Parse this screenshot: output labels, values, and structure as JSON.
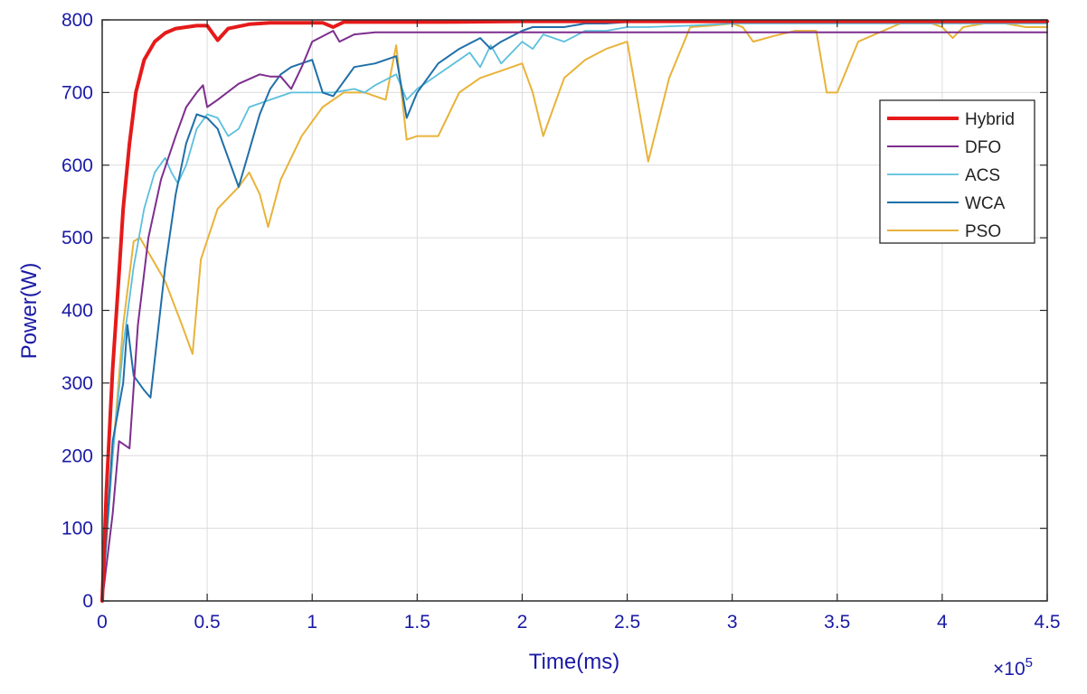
{
  "chart_data": {
    "type": "line",
    "xlabel": "Time(ms)",
    "ylabel": "Power(W)",
    "x_multiplier_label": "×10",
    "x_multiplier_exponent": "5",
    "xlim": [
      0,
      4.5
    ],
    "ylim": [
      0,
      800
    ],
    "xticks": [
      "0",
      "0.5",
      "1",
      "1.5",
      "2",
      "2.5",
      "3",
      "3.5",
      "4",
      "4.5"
    ],
    "yticks": [
      "0",
      "100",
      "200",
      "300",
      "400",
      "500",
      "600",
      "700",
      "800"
    ],
    "grid": true,
    "legend_position": "top-right",
    "series": [
      {
        "name": "Hybrid",
        "color": "#e51a1a",
        "width": 4,
        "x": [
          0,
          0.02,
          0.05,
          0.08,
          0.1,
          0.13,
          0.16,
          0.2,
          0.25,
          0.3,
          0.35,
          0.4,
          0.45,
          0.5,
          0.55,
          0.6,
          0.7,
          0.8,
          0.9,
          1.0,
          1.05,
          1.1,
          1.15,
          1.2,
          1.4,
          1.6,
          2.0,
          2.5,
          3.0,
          4.5
        ],
        "y": [
          0,
          150,
          320,
          450,
          540,
          630,
          700,
          745,
          770,
          782,
          788,
          790,
          792,
          792,
          772,
          788,
          794,
          796,
          796,
          796,
          796,
          790,
          797,
          797,
          797,
          797,
          798,
          798,
          798,
          798
        ]
      },
      {
        "name": "DFO",
        "color": "#7d2e8e",
        "width": 2,
        "x": [
          0,
          0.05,
          0.08,
          0.13,
          0.17,
          0.22,
          0.28,
          0.35,
          0.4,
          0.45,
          0.48,
          0.5,
          0.55,
          0.65,
          0.75,
          0.8,
          0.85,
          0.9,
          0.95,
          1.0,
          1.1,
          1.13,
          1.2,
          1.3,
          1.5,
          2.0,
          2.5,
          4.5
        ],
        "y": [
          0,
          120,
          220,
          210,
          380,
          500,
          580,
          640,
          680,
          700,
          710,
          680,
          690,
          712,
          725,
          722,
          722,
          705,
          735,
          770,
          785,
          770,
          780,
          783,
          783,
          783,
          783,
          783
        ]
      },
      {
        "name": "ACS",
        "color": "#5bbfdd",
        "width": 1.8,
        "x": [
          0,
          0.05,
          0.1,
          0.15,
          0.2,
          0.25,
          0.3,
          0.33,
          0.36,
          0.4,
          0.45,
          0.5,
          0.55,
          0.6,
          0.65,
          0.7,
          0.8,
          0.9,
          1.0,
          1.1,
          1.2,
          1.25,
          1.3,
          1.4,
          1.45,
          1.5,
          1.6,
          1.7,
          1.75,
          1.8,
          1.85,
          1.9,
          1.95,
          2.0,
          2.05,
          2.1,
          2.2,
          2.3,
          2.4,
          2.5,
          2.6,
          2.8,
          3.0,
          3.5,
          4.5
        ],
        "y": [
          0,
          200,
          350,
          460,
          540,
          590,
          610,
          590,
          575,
          600,
          650,
          670,
          665,
          640,
          650,
          680,
          690,
          700,
          700,
          700,
          705,
          700,
          710,
          725,
          690,
          705,
          725,
          745,
          755,
          735,
          765,
          740,
          755,
          770,
          760,
          780,
          770,
          785,
          785,
          790,
          790,
          792,
          795,
          795,
          795
        ]
      },
      {
        "name": "WCA",
        "color": "#1f6fa8",
        "width": 2,
        "x": [
          0,
          0.05,
          0.1,
          0.12,
          0.15,
          0.2,
          0.23,
          0.3,
          0.35,
          0.4,
          0.45,
          0.5,
          0.55,
          0.6,
          0.65,
          0.7,
          0.75,
          0.8,
          0.85,
          0.9,
          0.95,
          1.0,
          1.05,
          1.1,
          1.2,
          1.3,
          1.4,
          1.45,
          1.5,
          1.6,
          1.7,
          1.8,
          1.85,
          1.9,
          2.0,
          2.05,
          2.1,
          2.2,
          2.3,
          2.4,
          2.5,
          2.6,
          3.0,
          4.5
        ],
        "y": [
          0,
          220,
          300,
          380,
          310,
          290,
          280,
          460,
          560,
          630,
          670,
          665,
          650,
          610,
          570,
          620,
          670,
          705,
          725,
          735,
          740,
          745,
          700,
          695,
          735,
          740,
          750,
          665,
          700,
          740,
          760,
          775,
          760,
          770,
          785,
          790,
          790,
          790,
          795,
          795,
          797,
          797,
          798,
          798
        ]
      },
      {
        "name": "PSO",
        "color": "#e8b33a",
        "width": 2,
        "x": [
          0,
          0.05,
          0.1,
          0.15,
          0.18,
          0.22,
          0.3,
          0.38,
          0.43,
          0.47,
          0.55,
          0.6,
          0.65,
          0.7,
          0.75,
          0.79,
          0.85,
          0.95,
          1.05,
          1.15,
          1.25,
          1.35,
          1.4,
          1.45,
          1.5,
          1.6,
          1.7,
          1.8,
          1.9,
          2.0,
          2.05,
          2.1,
          2.2,
          2.3,
          2.4,
          2.5,
          2.6,
          2.7,
          2.8,
          2.9,
          3.0,
          3.05,
          3.1,
          3.2,
          3.3,
          3.4,
          3.45,
          3.5,
          3.6,
          3.8,
          3.95,
          4.0,
          4.05,
          4.1,
          4.2,
          4.3,
          4.4,
          4.5
        ],
        "y": [
          0,
          200,
          380,
          495,
          500,
          480,
          440,
          380,
          340,
          470,
          540,
          555,
          570,
          590,
          560,
          515,
          580,
          640,
          680,
          700,
          700,
          690,
          765,
          635,
          640,
          640,
          700,
          720,
          730,
          740,
          700,
          640,
          720,
          745,
          760,
          770,
          605,
          720,
          790,
          792,
          795,
          790,
          770,
          778,
          785,
          785,
          700,
          700,
          770,
          795,
          795,
          790,
          775,
          790,
          795,
          795,
          790,
          790
        ]
      }
    ]
  }
}
